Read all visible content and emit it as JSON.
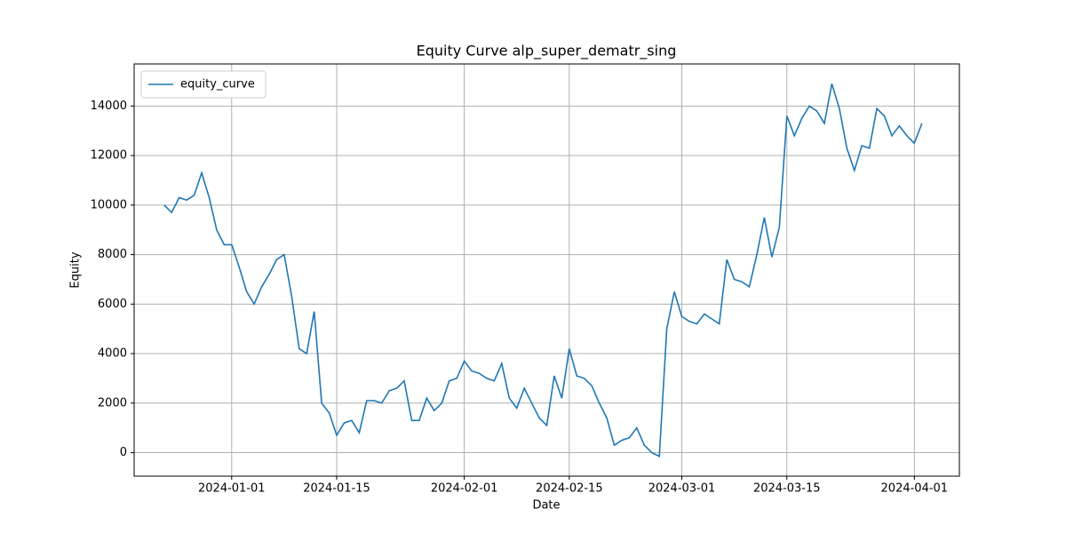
{
  "chart_data": {
    "type": "line",
    "title": "Equity Curve alp_super_dematr_sing",
    "x_label": "Date",
    "y_label": "Equity",
    "x": [
      "2023-12-23",
      "2023-12-24",
      "2023-12-25",
      "2023-12-26",
      "2023-12-27",
      "2023-12-28",
      "2023-12-29",
      "2023-12-30",
      "2023-12-31",
      "2024-01-01",
      "2024-01-02",
      "2024-01-03",
      "2024-01-04",
      "2024-01-05",
      "2024-01-06",
      "2024-01-07",
      "2024-01-08",
      "2024-01-09",
      "2024-01-10",
      "2024-01-11",
      "2024-01-12",
      "2024-01-13",
      "2024-01-14",
      "2024-01-15",
      "2024-01-16",
      "2024-01-17",
      "2024-01-18",
      "2024-01-19",
      "2024-01-20",
      "2024-01-21",
      "2024-01-22",
      "2024-01-23",
      "2024-01-24",
      "2024-01-25",
      "2024-01-26",
      "2024-01-27",
      "2024-01-28",
      "2024-01-29",
      "2024-01-30",
      "2024-01-31",
      "2024-02-01",
      "2024-02-02",
      "2024-02-03",
      "2024-02-04",
      "2024-02-05",
      "2024-02-06",
      "2024-02-07",
      "2024-02-08",
      "2024-02-09",
      "2024-02-10",
      "2024-02-11",
      "2024-02-12",
      "2024-02-13",
      "2024-02-14",
      "2024-02-15",
      "2024-02-16",
      "2024-02-17",
      "2024-02-18",
      "2024-02-19",
      "2024-02-20",
      "2024-02-21",
      "2024-02-22",
      "2024-02-23",
      "2024-02-24",
      "2024-02-25",
      "2024-02-26",
      "2024-02-27",
      "2024-02-28",
      "2024-02-29",
      "2024-03-01",
      "2024-03-02",
      "2024-03-03",
      "2024-03-04",
      "2024-03-05",
      "2024-03-06",
      "2024-03-07",
      "2024-03-08",
      "2024-03-09",
      "2024-03-10",
      "2024-03-11",
      "2024-03-12",
      "2024-03-13",
      "2024-03-14",
      "2024-03-15",
      "2024-03-16",
      "2024-03-17",
      "2024-03-18",
      "2024-03-19",
      "2024-03-20",
      "2024-03-21",
      "2024-03-22",
      "2024-03-23",
      "2024-03-24",
      "2024-03-25",
      "2024-03-26",
      "2024-03-27",
      "2024-03-28",
      "2024-03-29",
      "2024-03-30",
      "2024-03-31",
      "2024-04-01",
      "2024-04-02"
    ],
    "series": [
      {
        "name": "equity_curve",
        "color": "#1f77b4",
        "values": [
          10000,
          9700,
          10300,
          10200,
          10400,
          11300,
          10300,
          9000,
          8400,
          8400,
          7500,
          6500,
          6000,
          6700,
          7200,
          7800,
          8000,
          6300,
          4200,
          4000,
          5700,
          2000,
          1600,
          700,
          1200,
          1300,
          800,
          2100,
          2100,
          2000,
          2500,
          2600,
          2900,
          1300,
          1300,
          2200,
          1700,
          2000,
          2900,
          3000,
          3700,
          3300,
          3200,
          3000,
          2900,
          3600,
          2200,
          1800,
          2600,
          2000,
          1400,
          1100,
          3100,
          2200,
          4200,
          3100,
          3000,
          2700,
          2000,
          1400,
          300,
          500,
          600,
          1000,
          300,
          0,
          -150,
          5000,
          6500,
          5500,
          5300,
          5200,
          5600,
          5400,
          5200,
          7800,
          7000,
          6900,
          6700,
          8000,
          9500,
          7900,
          9100,
          13600,
          12800,
          13500,
          14000,
          13800,
          13300,
          14900,
          13900,
          12300,
          11400,
          12400,
          12300,
          13900,
          13600,
          12800,
          13200,
          12800,
          12500,
          13300
        ]
      }
    ],
    "xlim": [
      "2023-12-19",
      "2024-04-07"
    ],
    "xticks": [
      "2024-01-01",
      "2024-01-15",
      "2024-02-01",
      "2024-02-15",
      "2024-03-01",
      "2024-03-15",
      "2024-04-01"
    ],
    "ylim": [
      -950,
      15700
    ],
    "yticks": [
      0,
      2000,
      4000,
      6000,
      8000,
      10000,
      12000,
      14000
    ],
    "grid": true,
    "legend": "upper left"
  }
}
